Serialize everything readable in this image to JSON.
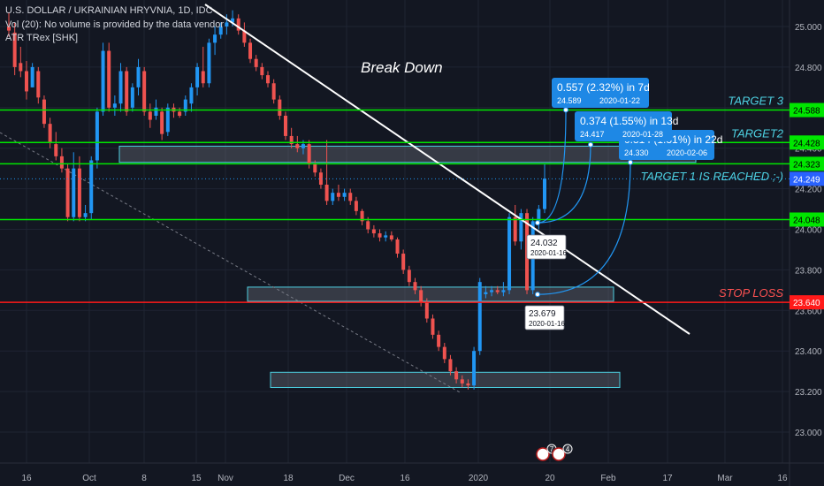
{
  "chart_data": {
    "type": "candlestick",
    "title": "U.S. DOLLAR / UKRAINIAN HRYVNIA, 1D, IDC",
    "indicator_lines": [
      "Vol (20): No volume is provided by the data vendor",
      "ATR TRex [SHK]"
    ],
    "ylim": [
      22.9,
      25.15
    ],
    "price_ticks": [
      "25.000",
      "24.800",
      "24.600",
      "24.400",
      "24.200",
      "24.000",
      "23.800",
      "23.600",
      "23.400",
      "23.200",
      "23.000"
    ],
    "time_ticks": [
      "16",
      "Oct",
      "8",
      "15",
      "Nov",
      "18",
      "Dec",
      "16",
      "2020",
      "20",
      "Feb",
      "17",
      "Mar",
      "16"
    ],
    "candles": [
      {
        "o": 25.0,
        "h": 25.07,
        "l": 24.95,
        "c": 24.98
      },
      {
        "o": 24.97,
        "h": 25.02,
        "l": 24.76,
        "c": 24.8
      },
      {
        "o": 24.82,
        "h": 24.9,
        "l": 24.75,
        "c": 24.78
      },
      {
        "o": 24.78,
        "h": 24.83,
        "l": 24.64,
        "c": 24.68
      },
      {
        "o": 24.7,
        "h": 24.82,
        "l": 24.7,
        "c": 24.8
      },
      {
        "o": 24.78,
        "h": 24.8,
        "l": 24.62,
        "c": 24.65
      },
      {
        "o": 24.64,
        "h": 24.66,
        "l": 24.5,
        "c": 24.52
      },
      {
        "o": 24.52,
        "h": 24.55,
        "l": 24.4,
        "c": 24.43
      },
      {
        "o": 24.42,
        "h": 24.48,
        "l": 24.34,
        "c": 24.36
      },
      {
        "o": 24.36,
        "h": 24.4,
        "l": 24.28,
        "c": 24.3
      },
      {
        "o": 24.3,
        "h": 24.32,
        "l": 24.04,
        "c": 24.06
      },
      {
        "o": 24.06,
        "h": 24.38,
        "l": 24.04,
        "c": 24.3
      },
      {
        "o": 24.3,
        "h": 24.36,
        "l": 24.04,
        "c": 24.06
      },
      {
        "o": 24.06,
        "h": 24.12,
        "l": 24.04,
        "c": 24.08
      },
      {
        "o": 24.08,
        "h": 24.36,
        "l": 24.05,
        "c": 24.34
      },
      {
        "o": 24.34,
        "h": 24.6,
        "l": 24.3,
        "c": 24.58
      },
      {
        "o": 24.58,
        "h": 24.92,
        "l": 24.56,
        "c": 24.88
      },
      {
        "o": 24.88,
        "h": 24.92,
        "l": 24.58,
        "c": 24.6
      },
      {
        "o": 24.6,
        "h": 24.66,
        "l": 24.56,
        "c": 24.62
      },
      {
        "o": 24.62,
        "h": 24.82,
        "l": 24.58,
        "c": 24.78
      },
      {
        "o": 24.78,
        "h": 24.8,
        "l": 24.56,
        "c": 24.58
      },
      {
        "o": 24.6,
        "h": 24.72,
        "l": 24.58,
        "c": 24.7
      },
      {
        "o": 24.7,
        "h": 24.84,
        "l": 24.66,
        "c": 24.8
      },
      {
        "o": 24.78,
        "h": 24.8,
        "l": 24.56,
        "c": 24.58
      },
      {
        "o": 24.58,
        "h": 24.62,
        "l": 24.5,
        "c": 24.54
      },
      {
        "o": 24.56,
        "h": 24.64,
        "l": 24.54,
        "c": 24.6
      },
      {
        "o": 24.58,
        "h": 24.6,
        "l": 24.44,
        "c": 24.47
      },
      {
        "o": 24.48,
        "h": 24.62,
        "l": 24.46,
        "c": 24.6
      },
      {
        "o": 24.6,
        "h": 24.62,
        "l": 24.55,
        "c": 24.58
      },
      {
        "o": 24.58,
        "h": 24.6,
        "l": 24.55,
        "c": 24.56
      },
      {
        "o": 24.58,
        "h": 24.66,
        "l": 24.56,
        "c": 24.64
      },
      {
        "o": 24.62,
        "h": 24.72,
        "l": 24.58,
        "c": 24.7
      },
      {
        "o": 24.7,
        "h": 24.82,
        "l": 24.66,
        "c": 24.8
      },
      {
        "o": 24.78,
        "h": 24.9,
        "l": 24.7,
        "c": 24.72
      },
      {
        "o": 24.72,
        "h": 24.94,
        "l": 24.7,
        "c": 24.92
      },
      {
        "o": 24.92,
        "h": 25.0,
        "l": 24.86,
        "c": 24.96
      },
      {
        "o": 24.96,
        "h": 25.02,
        "l": 24.94,
        "c": 25.0
      },
      {
        "o": 25.0,
        "h": 25.06,
        "l": 24.96,
        "c": 25.02
      },
      {
        "o": 25.02,
        "h": 25.08,
        "l": 25.0,
        "c": 25.04
      },
      {
        "o": 25.04,
        "h": 25.06,
        "l": 24.96,
        "c": 24.98
      },
      {
        "o": 24.98,
        "h": 25.02,
        "l": 24.9,
        "c": 24.92
      },
      {
        "o": 24.92,
        "h": 24.94,
        "l": 24.82,
        "c": 24.84
      },
      {
        "o": 24.84,
        "h": 24.86,
        "l": 24.78,
        "c": 24.8
      },
      {
        "o": 24.8,
        "h": 24.82,
        "l": 24.74,
        "c": 24.76
      },
      {
        "o": 24.76,
        "h": 24.78,
        "l": 24.7,
        "c": 24.72
      },
      {
        "o": 24.72,
        "h": 24.74,
        "l": 24.62,
        "c": 24.64
      },
      {
        "o": 24.64,
        "h": 24.66,
        "l": 24.54,
        "c": 24.56
      },
      {
        "o": 24.56,
        "h": 24.58,
        "l": 24.44,
        "c": 24.46
      },
      {
        "o": 24.46,
        "h": 24.5,
        "l": 24.4,
        "c": 24.42
      },
      {
        "o": 24.42,
        "h": 24.46,
        "l": 24.38,
        "c": 24.4
      },
      {
        "o": 24.4,
        "h": 24.44,
        "l": 24.37,
        "c": 24.42
      },
      {
        "o": 24.42,
        "h": 24.44,
        "l": 24.3,
        "c": 24.32
      },
      {
        "o": 24.32,
        "h": 24.34,
        "l": 24.26,
        "c": 24.28
      },
      {
        "o": 24.28,
        "h": 24.3,
        "l": 24.2,
        "c": 24.22
      },
      {
        "o": 24.22,
        "h": 24.44,
        "l": 24.12,
        "c": 24.14
      },
      {
        "o": 24.14,
        "h": 24.2,
        "l": 24.12,
        "c": 24.18
      },
      {
        "o": 24.18,
        "h": 24.22,
        "l": 24.14,
        "c": 24.16
      },
      {
        "o": 24.16,
        "h": 24.2,
        "l": 24.14,
        "c": 24.18
      },
      {
        "o": 24.18,
        "h": 24.2,
        "l": 24.12,
        "c": 24.14
      },
      {
        "o": 24.14,
        "h": 24.16,
        "l": 24.07,
        "c": 24.09
      },
      {
        "o": 24.09,
        "h": 24.1,
        "l": 24.02,
        "c": 24.04
      },
      {
        "o": 24.04,
        "h": 24.06,
        "l": 23.98,
        "c": 24.0
      },
      {
        "o": 24.0,
        "h": 24.02,
        "l": 23.96,
        "c": 23.98
      },
      {
        "o": 23.98,
        "h": 24.0,
        "l": 23.94,
        "c": 23.96
      },
      {
        "o": 23.96,
        "h": 23.99,
        "l": 23.94,
        "c": 23.97
      },
      {
        "o": 23.97,
        "h": 23.99,
        "l": 23.94,
        "c": 23.95
      },
      {
        "o": 23.95,
        "h": 23.96,
        "l": 23.86,
        "c": 23.88
      },
      {
        "o": 23.88,
        "h": 23.9,
        "l": 23.78,
        "c": 23.8
      },
      {
        "o": 23.8,
        "h": 23.82,
        "l": 23.72,
        "c": 23.74
      },
      {
        "o": 23.74,
        "h": 23.76,
        "l": 23.68,
        "c": 23.7
      },
      {
        "o": 23.7,
        "h": 23.72,
        "l": 23.62,
        "c": 23.64
      },
      {
        "o": 23.64,
        "h": 23.66,
        "l": 23.54,
        "c": 23.56
      },
      {
        "o": 23.56,
        "h": 23.58,
        "l": 23.46,
        "c": 23.48
      },
      {
        "o": 23.48,
        "h": 23.5,
        "l": 23.4,
        "c": 23.42
      },
      {
        "o": 23.42,
        "h": 23.44,
        "l": 23.34,
        "c": 23.36
      },
      {
        "o": 23.36,
        "h": 23.38,
        "l": 23.28,
        "c": 23.3
      },
      {
        "o": 23.3,
        "h": 23.32,
        "l": 23.24,
        "c": 23.26
      },
      {
        "o": 23.26,
        "h": 23.28,
        "l": 23.22,
        "c": 23.24
      },
      {
        "o": 23.24,
        "h": 23.26,
        "l": 23.21,
        "c": 23.23
      },
      {
        "o": 23.23,
        "h": 23.42,
        "l": 23.21,
        "c": 23.4
      },
      {
        "o": 23.4,
        "h": 23.76,
        "l": 23.38,
        "c": 23.74
      },
      {
        "o": 23.68,
        "h": 23.72,
        "l": 23.66,
        "c": 23.69
      },
      {
        "o": 23.69,
        "h": 23.72,
        "l": 23.67,
        "c": 23.7
      },
      {
        "o": 23.7,
        "h": 23.72,
        "l": 23.68,
        "c": 23.69
      },
      {
        "o": 23.69,
        "h": 23.74,
        "l": 23.67,
        "c": 23.7
      },
      {
        "o": 23.7,
        "h": 24.08,
        "l": 23.68,
        "c": 24.06
      },
      {
        "o": 24.06,
        "h": 24.12,
        "l": 23.92,
        "c": 23.94
      },
      {
        "o": 23.94,
        "h": 24.1,
        "l": 23.9,
        "c": 24.08
      },
      {
        "o": 24.08,
        "h": 24.1,
        "l": 23.68,
        "c": 23.7
      },
      {
        "o": 23.7,
        "h": 24.06,
        "l": 23.68,
        "c": 24.04
      },
      {
        "o": 24.04,
        "h": 24.12,
        "l": 24.0,
        "c": 24.1
      },
      {
        "o": 24.1,
        "h": 24.32,
        "l": 24.08,
        "c": 24.25
      }
    ],
    "levels": [
      {
        "label": "TARGET 3",
        "price": "24.588",
        "value": 24.588,
        "color": "#00e600"
      },
      {
        "label": "TARGET2",
        "price": "24.428",
        "value": 24.428,
        "color": "#00e600"
      },
      {
        "label": "",
        "price": "24.323",
        "value": 24.323,
        "color": "#00e600"
      },
      {
        "label": "",
        "price": "24.048",
        "value": 24.048,
        "color": "#00e600"
      },
      {
        "label": "STOP LOSS",
        "price": "23.640",
        "value": 23.64,
        "color": "#ff1a1a"
      }
    ],
    "last_price": {
      "price": "24.249",
      "value": 24.249,
      "color": "#2962ff"
    },
    "zones": [
      {
        "from": 24.33,
        "to": 24.41
      },
      {
        "from": 23.645,
        "to": 23.715
      },
      {
        "from": 23.22,
        "to": 23.295
      }
    ],
    "annotations": {
      "break_down": "Break Down",
      "target1_reached": "TARGET 1 IS REACHED ;-)"
    },
    "projections": [
      {
        "text": "0.557 (2.32%) in 7d",
        "sub": "24.589",
        "date": "2020-01-22",
        "value": 24.589
      },
      {
        "text": "0.374 (1.55%) in 13d",
        "sub": "24.417",
        "date": "2020-01-28",
        "value": 24.417
      },
      {
        "text": "0.314 (1.31%) in 22d",
        "sub": "24.330",
        "date": "2020-02-06",
        "value": 24.33
      }
    ],
    "anchors": [
      {
        "value": "24.032",
        "date": "2020-01-16",
        "price": 24.032
      },
      {
        "value": "23.679",
        "date": "2020-01-16",
        "price": 23.679
      }
    ],
    "event_badges": [
      "7",
      "4"
    ],
    "colors": {
      "up": "#2196f3",
      "down": "#ef5350",
      "background": "#131722",
      "grid": "#1f2433",
      "text": "#b2b5be"
    }
  }
}
